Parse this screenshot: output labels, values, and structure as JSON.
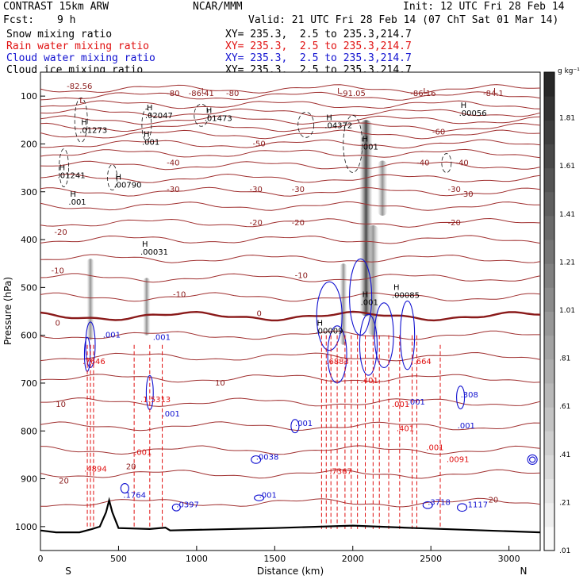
{
  "header": {
    "model": "CONTRAST 15km ARW",
    "center": "NCAR/MMM",
    "init": "Init: 12 UTC Fri 28 Feb 14",
    "fcst_label": "Fcst:",
    "fcst_value": "9 h",
    "valid": "Valid: 21 UTC Fri 28 Feb 14 (07 ChT Sat 01 Mar 14)",
    "legend": [
      {
        "label": "Snow mixing ratio",
        "xy": "XY= 235.3,  2.5 to 235.3,214.7",
        "color": "#000000"
      },
      {
        "label": "Rain water mixing ratio",
        "xy": "XY= 235.3,  2.5 to 235.3,214.7",
        "color": "#e01010"
      },
      {
        "label": "Cloud water mixing ratio",
        "xy": "XY= 235.3,  2.5 to 235.3,214.7",
        "color": "#1010d0"
      },
      {
        "label": "Cloud ice mixing ratio",
        "xy": "XY= 235.3,  2.5 to 235.3,214.7",
        "color": "#000000"
      }
    ]
  },
  "chart_data": {
    "type": "heatmap",
    "xlabel": "Distance (km)",
    "ylabel": "Pressure (hPa)",
    "xlim": [
      0,
      3200
    ],
    "ylim": [
      1050,
      50
    ],
    "x_ticks": [
      0,
      500,
      1000,
      1500,
      2000,
      2500,
      3000
    ],
    "y_ticks": [
      100,
      200,
      300,
      400,
      500,
      600,
      700,
      800,
      900,
      1000
    ],
    "x_end_labels": {
      "left": "S",
      "right": "N"
    },
    "colorbar": {
      "unit": "g kg⁻¹",
      "ticks": [
        "1.81",
        "1.61",
        "1.41",
        "1.21",
        "1.01",
        ".81",
        ".61",
        ".41",
        ".21",
        ".01"
      ],
      "range": [
        0.01,
        2.0
      ]
    },
    "temperature_labels": [
      {
        "x": 250,
        "p": 85,
        "t": "-82.56"
      },
      {
        "x": 1030,
        "p": 100,
        "t": "-86.41"
      },
      {
        "x": 1230,
        "p": 100,
        "t": "-80"
      },
      {
        "x": 850,
        "p": 100,
        "t": "-80"
      },
      {
        "x": 2000,
        "p": 100,
        "t": "-91.05"
      },
      {
        "x": 2450,
        "p": 100,
        "t": "-86.16"
      },
      {
        "x": 2900,
        "p": 100,
        "t": "-84.1"
      },
      {
        "x": 2550,
        "p": 180,
        "t": "-60"
      },
      {
        "x": 1400,
        "p": 205,
        "t": "-50"
      },
      {
        "x": 850,
        "p": 245,
        "t": "-40"
      },
      {
        "x": 2450,
        "p": 245,
        "t": "-40"
      },
      {
        "x": 2700,
        "p": 245,
        "t": "-40"
      },
      {
        "x": 850,
        "p": 300,
        "t": "-30"
      },
      {
        "x": 1380,
        "p": 300,
        "t": "-30"
      },
      {
        "x": 1650,
        "p": 300,
        "t": "-30"
      },
      {
        "x": 2650,
        "p": 300,
        "t": "-30"
      },
      {
        "x": 2730,
        "p": 310,
        "t": "-30"
      },
      {
        "x": 130,
        "p": 390,
        "t": "-20"
      },
      {
        "x": 1380,
        "p": 370,
        "t": "-20"
      },
      {
        "x": 1650,
        "p": 370,
        "t": "-20"
      },
      {
        "x": 2650,
        "p": 370,
        "t": "-20"
      },
      {
        "x": 110,
        "p": 470,
        "t": "-10"
      },
      {
        "x": 890,
        "p": 520,
        "t": "-10"
      },
      {
        "x": 1670,
        "p": 480,
        "t": "-10"
      },
      {
        "x": 110,
        "p": 580,
        "t": "0"
      },
      {
        "x": 1400,
        "p": 560,
        "t": "0"
      },
      {
        "x": 1150,
        "p": 705,
        "t": "10"
      },
      {
        "x": 130,
        "p": 750,
        "t": "10"
      },
      {
        "x": 150,
        "p": 910,
        "t": "20"
      },
      {
        "x": 580,
        "p": 880,
        "t": "20"
      },
      {
        "x": 2900,
        "p": 950,
        "t": "20"
      }
    ],
    "extrema_labels": [
      {
        "x": 250,
        "p": 115,
        "kind": "L"
      },
      {
        "x": 1030,
        "p": 95,
        "kind": "L"
      },
      {
        "x": 1900,
        "p": 95,
        "kind": "L"
      },
      {
        "x": 2450,
        "p": 95,
        "kind": "L"
      },
      {
        "x": 2900,
        "p": 95,
        "kind": "L"
      },
      {
        "x": 680,
        "p": 130,
        "kind": "H",
        "v": ".02047"
      },
      {
        "x": 1060,
        "p": 135,
        "kind": "H",
        "v": ".01473"
      },
      {
        "x": 1830,
        "p": 150,
        "kind": "H",
        "v": ".04372"
      },
      {
        "x": 2690,
        "p": 125,
        "kind": "H",
        "v": ".00056"
      },
      {
        "x": 260,
        "p": 160,
        "kind": "H",
        "v": ".01273"
      },
      {
        "x": 660,
        "p": 185,
        "kind": "H",
        "v": ".001"
      },
      {
        "x": 2060,
        "p": 195,
        "kind": "H",
        "v": ".001"
      },
      {
        "x": 120,
        "p": 255,
        "kind": "H",
        "v": ".01241"
      },
      {
        "x": 480,
        "p": 275,
        "kind": "H",
        "v": ".00790"
      },
      {
        "x": 190,
        "p": 310,
        "kind": "H",
        "v": ".001"
      },
      {
        "x": 650,
        "p": 415,
        "kind": "H",
        "v": ".00031"
      },
      {
        "x": 1770,
        "p": 580,
        "kind": "H",
        "v": ".00009"
      },
      {
        "x": 2260,
        "p": 505,
        "kind": "H",
        "v": ".00085"
      },
      {
        "x": 2060,
        "p": 520,
        "kind": "H",
        "v": ".001"
      }
    ],
    "cloud_water_labels": [
      {
        "x": 400,
        "p": 605,
        "v": ".001"
      },
      {
        "x": 720,
        "p": 610,
        "v": ".001"
      },
      {
        "x": 780,
        "p": 770,
        "v": ".001"
      },
      {
        "x": 1630,
        "p": 790,
        "v": ".001"
      },
      {
        "x": 1380,
        "p": 860,
        "v": ".0038"
      },
      {
        "x": 1400,
        "p": 940,
        "v": ".001"
      },
      {
        "x": 870,
        "p": 960,
        "v": ".0397"
      },
      {
        "x": 2690,
        "p": 730,
        "v": ".308"
      },
      {
        "x": 2670,
        "p": 795,
        "v": ".001"
      },
      {
        "x": 2350,
        "p": 745,
        "v": ".001"
      },
      {
        "x": 2720,
        "p": 960,
        "v": ".1117"
      },
      {
        "x": 2480,
        "p": 955,
        "v": ".3718"
      },
      {
        "x": 530,
        "p": 940,
        "v": ".1764"
      }
    ],
    "rain_water_labels": [
      {
        "x": 270,
        "p": 660,
        "v": ".7646"
      },
      {
        "x": 640,
        "p": 740,
        "v": ".1.5313"
      },
      {
        "x": 1830,
        "p": 660,
        "v": ".6883"
      },
      {
        "x": 2050,
        "p": 700,
        "v": ".401"
      },
      {
        "x": 2250,
        "p": 750,
        "v": ".001"
      },
      {
        "x": 2280,
        "p": 800,
        "v": ".401"
      },
      {
        "x": 2390,
        "p": 660,
        "v": ".664"
      },
      {
        "x": 2470,
        "p": 840,
        "v": ".001"
      },
      {
        "x": 600,
        "p": 850,
        "v": ".001"
      },
      {
        "x": 2600,
        "p": 865,
        "v": ".0091"
      },
      {
        "x": 280,
        "p": 885,
        "v": ".4894"
      },
      {
        "x": 1850,
        "p": 890,
        "v": ".7367"
      }
    ],
    "terrain": [
      {
        "x": 0,
        "p": 1008
      },
      {
        "x": 100,
        "p": 1012
      },
      {
        "x": 250,
        "p": 1012
      },
      {
        "x": 330,
        "p": 1005
      },
      {
        "x": 380,
        "p": 1000
      },
      {
        "x": 420,
        "p": 970
      },
      {
        "x": 440,
        "p": 945
      },
      {
        "x": 460,
        "p": 970
      },
      {
        "x": 500,
        "p": 1003
      },
      {
        "x": 700,
        "p": 1005
      },
      {
        "x": 800,
        "p": 1002
      },
      {
        "x": 830,
        "p": 1008
      },
      {
        "x": 1500,
        "p": 1003
      },
      {
        "x": 2000,
        "p": 998
      },
      {
        "x": 2400,
        "p": 1003
      },
      {
        "x": 3200,
        "p": 1012
      }
    ]
  }
}
